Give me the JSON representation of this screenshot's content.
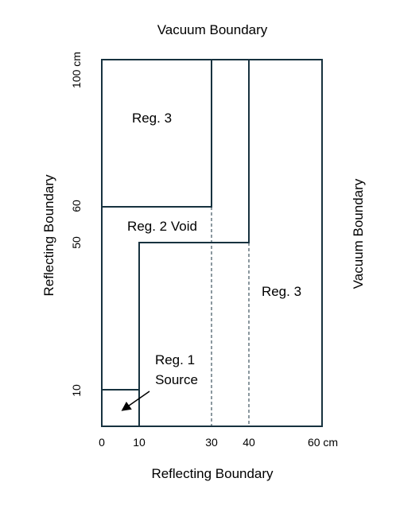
{
  "diagram": {
    "colors": {
      "outline": "#17323f",
      "text": "#000000",
      "background": "#ffffff"
    },
    "boundaries": {
      "top": "Vacuum Boundary",
      "right": "Vacuum Boundary",
      "left": "Reflecting Boundary",
      "bottom": "Reflecting Boundary"
    },
    "x_ticks": [
      "0",
      "10",
      "30",
      "40",
      "60 cm"
    ],
    "y_ticks": [
      "10",
      "50",
      "60",
      "100 cm"
    ],
    "regions": {
      "reg3_upper": "Reg. 3",
      "reg2": "Reg. 2 Void",
      "reg3_right": "Reg. 3",
      "reg1_line1": "Reg. 1",
      "reg1_line2": "Source"
    }
  }
}
